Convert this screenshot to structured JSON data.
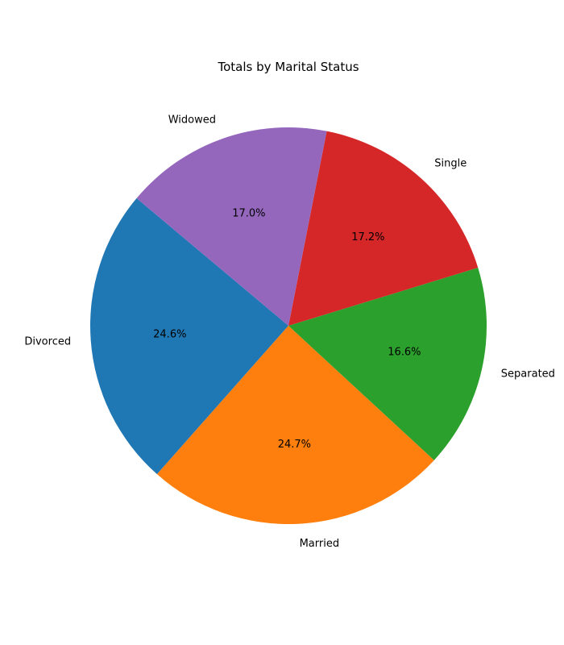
{
  "chart_data": {
    "type": "pie",
    "title": "Totals by Marital Status",
    "start_angle_deg": 140,
    "direction": "counterclockwise",
    "slices": [
      {
        "label": "Divorced",
        "percent": 24.6,
        "percent_label": "24.6%",
        "color": "#1f77b4"
      },
      {
        "label": "Married",
        "percent": 24.7,
        "percent_label": "24.7%",
        "color": "#ff7f0e"
      },
      {
        "label": "Separated",
        "percent": 16.6,
        "percent_label": "16.6%",
        "color": "#2ca02c"
      },
      {
        "label": "Single",
        "percent": 17.2,
        "percent_label": "17.2%",
        "color": "#d62728"
      },
      {
        "label": "Widowed",
        "percent": 17.0,
        "percent_label": "17.0%",
        "color": "#9467bd"
      }
    ]
  }
}
